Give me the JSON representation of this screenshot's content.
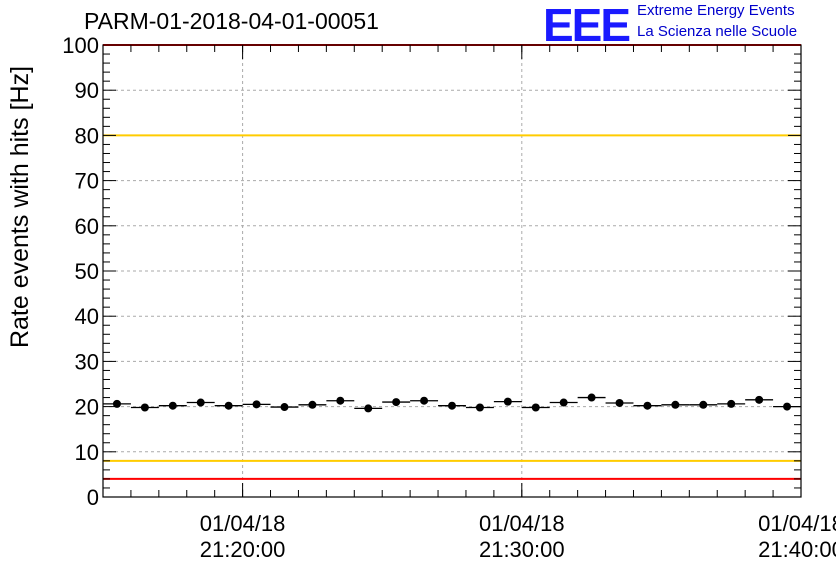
{
  "header": {
    "run_title": "PARM-01-2018-04-01-00051",
    "logo_mark": "EEE",
    "logo_line1": "Extreme Energy Events",
    "logo_line2": "La Scienza nelle Scuole"
  },
  "colors": {
    "upper_limit": "#ff0000",
    "warning": "#ffcc00",
    "points": "#000000",
    "logo": "#1a1aff"
  },
  "chart_data": {
    "type": "scatter",
    "ylabel": "Rate events with hits [Hz]",
    "ylim": [
      0,
      100
    ],
    "yticks": [
      0,
      10,
      20,
      30,
      40,
      50,
      60,
      70,
      80,
      90,
      100
    ],
    "xlim": [
      "2018-04-01 21:15:00",
      "2018-04-01 21:40:00"
    ],
    "xticks": [
      {
        "t": "2018-04-01 21:20:00",
        "date": "01/04/18",
        "time": "21:20:00"
      },
      {
        "t": "2018-04-01 21:30:00",
        "date": "01/04/18",
        "time": "21:30:00"
      },
      {
        "t": "2018-04-01 21:40:00",
        "date": "01/04/18",
        "time": "21:40:00"
      }
    ],
    "bin_width_seconds": 60,
    "grid": true,
    "series": [
      {
        "x": [
          "21:15:30",
          "21:16:30",
          "21:17:30",
          "21:18:30",
          "21:19:30",
          "21:20:30",
          "21:21:30",
          "21:22:30",
          "21:23:30",
          "21:24:30",
          "21:25:30",
          "21:26:30",
          "21:27:30",
          "21:28:30",
          "21:29:30",
          "21:30:30",
          "21:31:30",
          "21:32:30",
          "21:33:30",
          "21:34:30",
          "21:35:30",
          "21:36:30",
          "21:37:30",
          "21:38:30",
          "21:39:30"
        ],
        "y": [
          20.6,
          19.8,
          20.2,
          20.9,
          20.2,
          20.5,
          19.9,
          20.4,
          21.3,
          19.6,
          21.0,
          21.3,
          20.2,
          19.8,
          21.1,
          19.8,
          20.9,
          22.0,
          20.8,
          20.2,
          20.4,
          20.4,
          20.6,
          21.5,
          20.0
        ]
      }
    ],
    "reference_lines": [
      {
        "y": 100,
        "color": "#ff0000"
      },
      {
        "y": 80,
        "color": "#ffcc00"
      },
      {
        "y": 8,
        "color": "#ffcc00"
      },
      {
        "y": 4,
        "color": "#ff0000"
      }
    ]
  }
}
